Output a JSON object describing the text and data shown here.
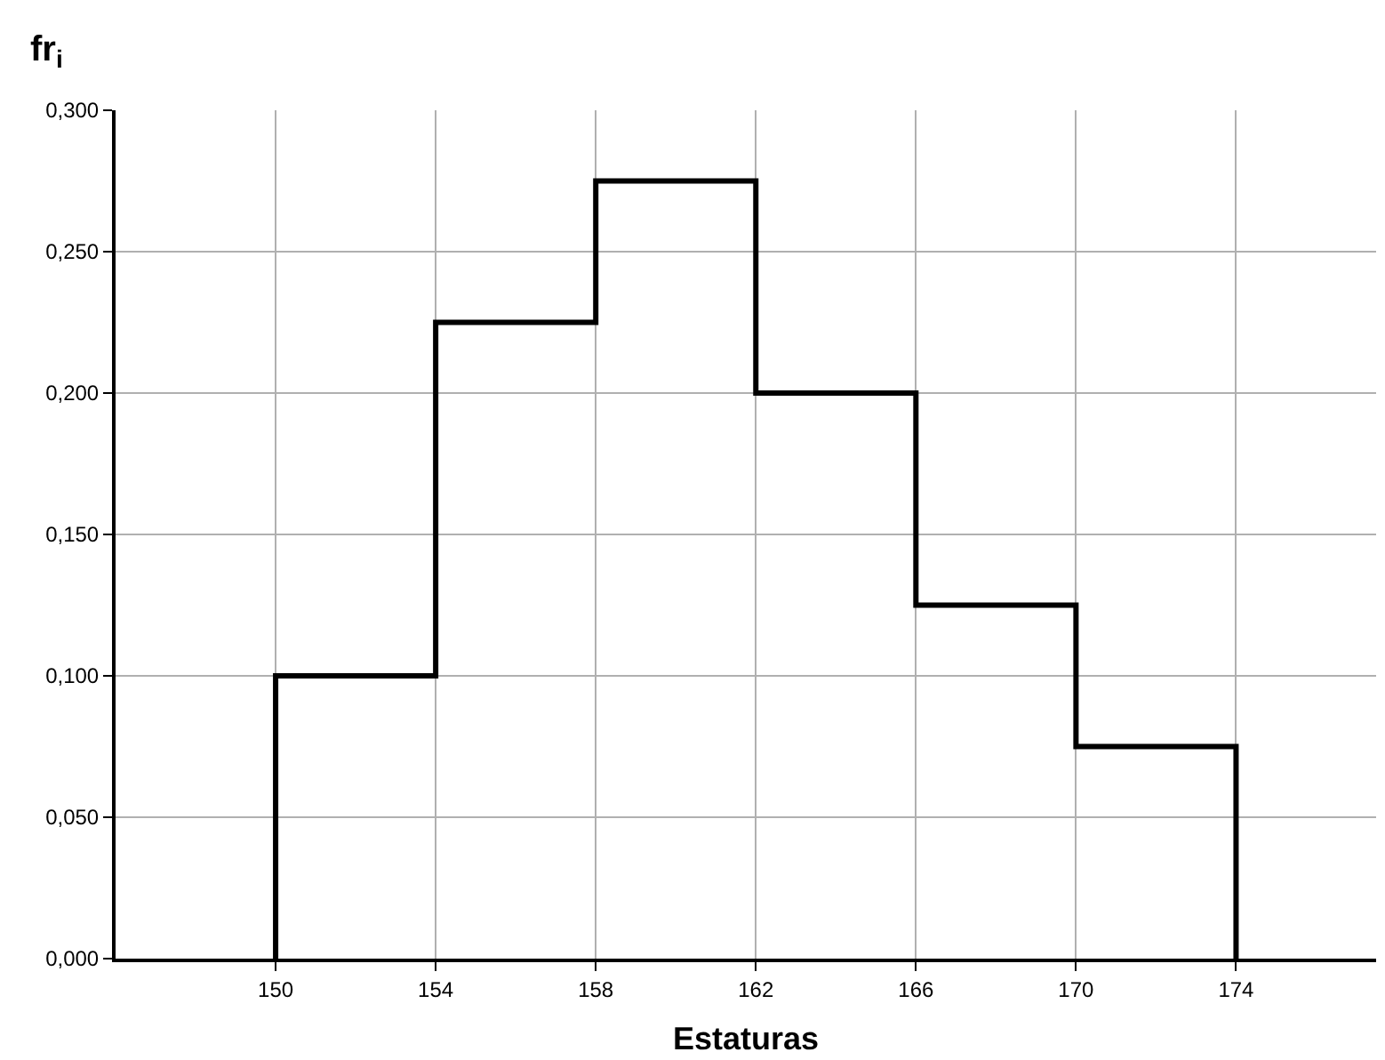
{
  "chart_data": {
    "type": "histogram",
    "xlabel": "Estaturas",
    "ylabel": "fr$_{i}$",
    "bins": [
      150,
      154,
      158,
      162,
      166,
      170,
      174
    ],
    "values": [
      0.1,
      0.225,
      0.275,
      0.2,
      0.125,
      0.075
    ],
    "color": "#000000",
    "xlim": [
      146,
      177.5
    ],
    "xticks": [
      150,
      154,
      158,
      162,
      166,
      170,
      174
    ],
    "ylim": [
      0,
      0.3
    ],
    "yticks": [
      {
        "value": 0,
        "label": "0,000"
      },
      {
        "value": 0.05,
        "label": "0,050"
      },
      {
        "value": 0.1,
        "label": "0,100"
      },
      {
        "value": 0.15,
        "label": "0,150"
      },
      {
        "value": 0.2,
        "label": "0,200"
      },
      {
        "value": 0.25,
        "label": "0,250"
      },
      {
        "value": 0.3,
        "label": "0,300"
      }
    ],
    "grid": true
  }
}
